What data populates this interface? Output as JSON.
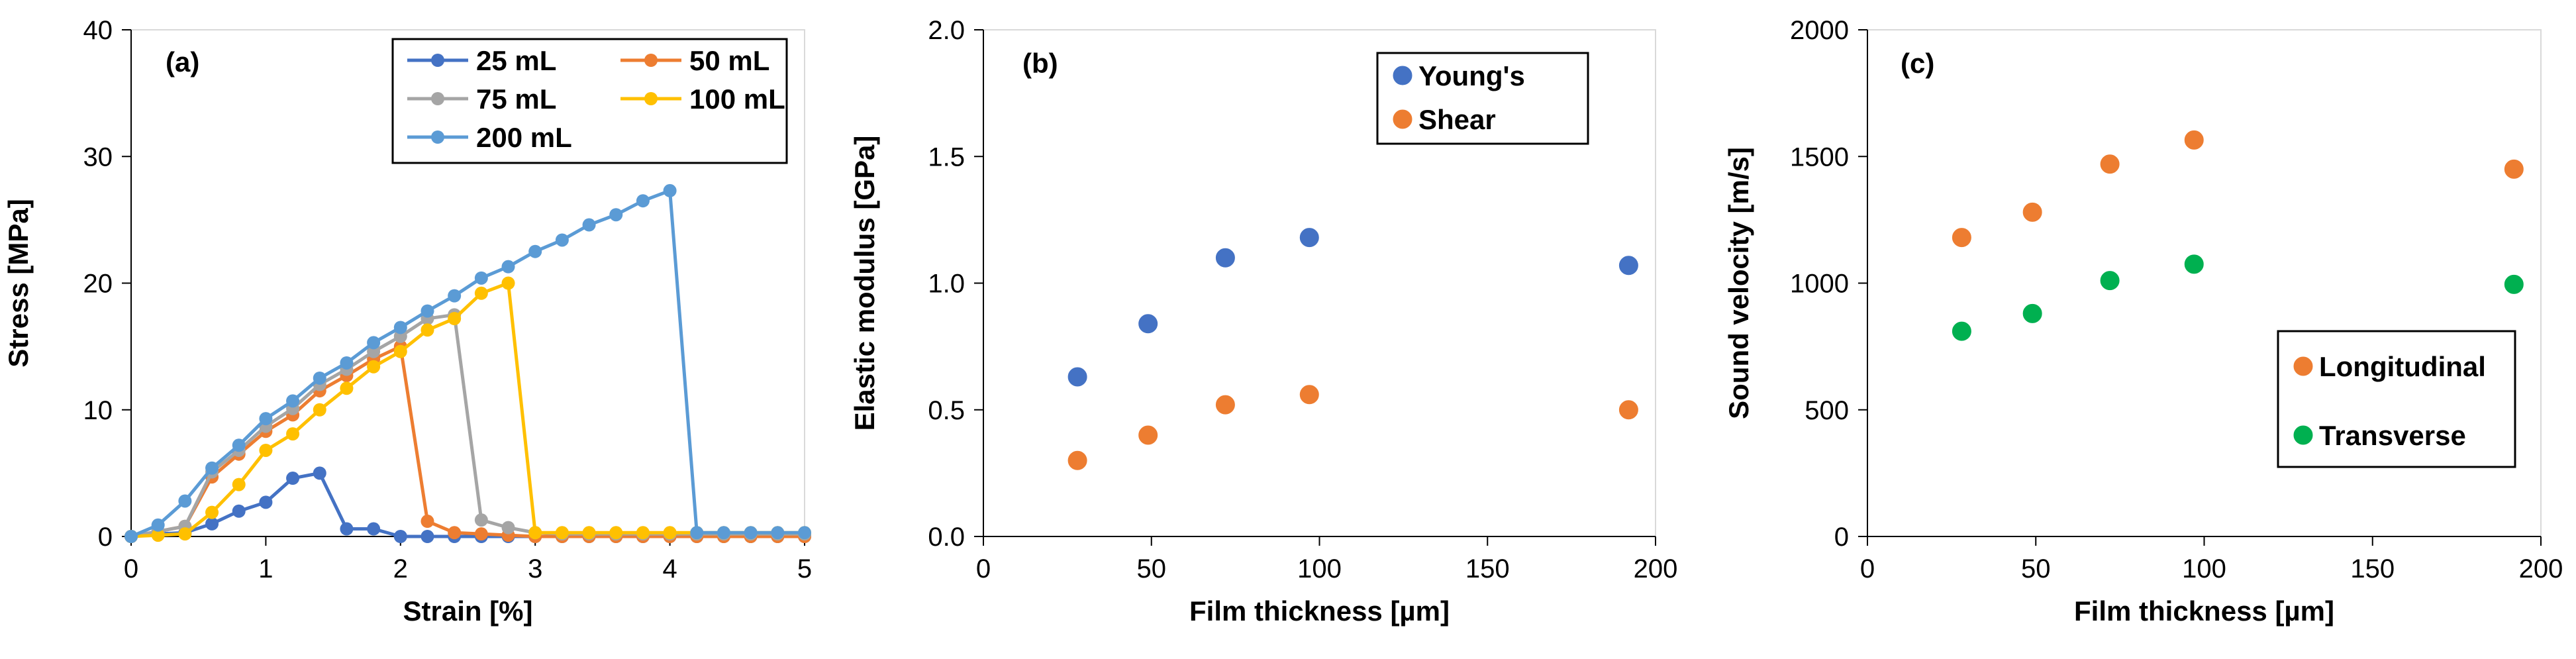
{
  "chart_data": [
    {
      "type": "line",
      "panel": "(a)",
      "xlabel": "Strain [%]",
      "ylabel": "Stress [MPa]",
      "xlim": [
        0,
        5
      ],
      "ylim": [
        0,
        40
      ],
      "xticks": [
        0,
        1,
        2,
        3,
        4,
        5
      ],
      "yticks": [
        0,
        10,
        20,
        30,
        40
      ],
      "legend_position": "top-right",
      "series": [
        {
          "name": "25 mL",
          "color": "#4472C4",
          "points": [
            [
              0,
              0
            ],
            [
              0.2,
              0.2
            ],
            [
              0.4,
              0.3
            ],
            [
              0.6,
              1.0
            ],
            [
              0.8,
              2.0
            ],
            [
              1.0,
              2.7
            ],
            [
              1.2,
              4.6
            ],
            [
              1.4,
              5.0
            ],
            [
              1.6,
              0.6
            ],
            [
              1.8,
              0.6
            ],
            [
              2.0,
              0.0
            ],
            [
              2.2,
              0.0
            ],
            [
              2.4,
              0.0
            ],
            [
              2.6,
              0.0
            ],
            [
              2.8,
              0.0
            ],
            [
              3.0,
              0.0
            ],
            [
              3.2,
              0.0
            ],
            [
              3.4,
              0.0
            ],
            [
              3.6,
              0.0
            ],
            [
              3.8,
              0.0
            ],
            [
              4.0,
              0.0
            ],
            [
              4.2,
              0.0
            ],
            [
              4.4,
              0.0
            ],
            [
              4.6,
              0.0
            ],
            [
              4.8,
              0.0
            ],
            [
              5.0,
              0.0
            ]
          ]
        },
        {
          "name": "50 mL",
          "color": "#ED7D31",
          "points": [
            [
              0,
              0
            ],
            [
              0.2,
              0.4
            ],
            [
              0.4,
              0.8
            ],
            [
              0.6,
              4.7
            ],
            [
              0.8,
              6.5
            ],
            [
              1.0,
              8.3
            ],
            [
              1.2,
              9.6
            ],
            [
              1.4,
              11.5
            ],
            [
              1.6,
              12.7
            ],
            [
              1.8,
              14.0
            ],
            [
              2.0,
              15.0
            ],
            [
              2.2,
              1.2
            ],
            [
              2.4,
              0.3
            ],
            [
              2.6,
              0.2
            ],
            [
              2.8,
              0.1
            ],
            [
              3.0,
              0.0
            ],
            [
              3.2,
              0.0
            ],
            [
              3.4,
              0.0
            ],
            [
              3.6,
              0.0
            ],
            [
              3.8,
              0.0
            ],
            [
              4.0,
              0.0
            ],
            [
              4.2,
              0.0
            ],
            [
              4.4,
              0.0
            ],
            [
              4.6,
              0.0
            ],
            [
              4.8,
              0.0
            ],
            [
              5.0,
              0.0
            ]
          ]
        },
        {
          "name": "75 mL",
          "color": "#A5A5A5",
          "points": [
            [
              0,
              0
            ],
            [
              0.2,
              0.4
            ],
            [
              0.4,
              0.8
            ],
            [
              0.6,
              5.1
            ],
            [
              0.8,
              6.8
            ],
            [
              1.0,
              8.7
            ],
            [
              1.2,
              10.1
            ],
            [
              1.4,
              12.0
            ],
            [
              1.6,
              13.2
            ],
            [
              1.8,
              14.6
            ],
            [
              2.0,
              15.8
            ],
            [
              2.2,
              17.2
            ],
            [
              2.4,
              17.5
            ],
            [
              2.6,
              1.3
            ],
            [
              2.8,
              0.7
            ],
            [
              3.0,
              0.3
            ],
            [
              3.2,
              0.2
            ],
            [
              3.4,
              0.2
            ],
            [
              3.6,
              0.2
            ],
            [
              3.8,
              0.2
            ],
            [
              4.0,
              0.2
            ],
            [
              4.2,
              0.2
            ],
            [
              4.4,
              0.2
            ],
            [
              4.6,
              0.2
            ],
            [
              4.8,
              0.2
            ],
            [
              5.0,
              0.2
            ]
          ]
        },
        {
          "name": "100 mL",
          "color": "#FFC000",
          "points": [
            [
              0,
              0
            ],
            [
              0.2,
              0.1
            ],
            [
              0.4,
              0.2
            ],
            [
              0.6,
              1.9
            ],
            [
              0.8,
              4.1
            ],
            [
              1.0,
              6.8
            ],
            [
              1.2,
              8.1
            ],
            [
              1.4,
              10.0
            ],
            [
              1.6,
              11.7
            ],
            [
              1.8,
              13.4
            ],
            [
              2.0,
              14.6
            ],
            [
              2.2,
              16.3
            ],
            [
              2.4,
              17.2
            ],
            [
              2.6,
              19.2
            ],
            [
              2.8,
              20.0
            ],
            [
              3.0,
              0.3
            ],
            [
              3.2,
              0.3
            ],
            [
              3.4,
              0.3
            ],
            [
              3.6,
              0.3
            ],
            [
              3.8,
              0.3
            ],
            [
              4.0,
              0.3
            ],
            [
              4.2,
              0.3
            ],
            [
              4.4,
              0.3
            ],
            [
              4.6,
              0.3
            ],
            [
              4.8,
              0.3
            ],
            [
              5.0,
              0.3
            ]
          ]
        },
        {
          "name": "200 mL",
          "color": "#5B9BD5",
          "points": [
            [
              0,
              0
            ],
            [
              0.2,
              0.9
            ],
            [
              0.4,
              2.8
            ],
            [
              0.6,
              5.4
            ],
            [
              0.8,
              7.2
            ],
            [
              1.0,
              9.3
            ],
            [
              1.2,
              10.7
            ],
            [
              1.4,
              12.5
            ],
            [
              1.6,
              13.7
            ],
            [
              1.8,
              15.3
            ],
            [
              2.0,
              16.5
            ],
            [
              2.2,
              17.8
            ],
            [
              2.4,
              19.0
            ],
            [
              2.6,
              20.4
            ],
            [
              2.8,
              21.3
            ],
            [
              3.0,
              22.5
            ],
            [
              3.2,
              23.4
            ],
            [
              3.4,
              24.6
            ],
            [
              3.6,
              25.4
            ],
            [
              3.8,
              26.5
            ],
            [
              4.0,
              27.3
            ],
            [
              4.2,
              0.3
            ],
            [
              4.4,
              0.3
            ],
            [
              4.6,
              0.3
            ],
            [
              4.8,
              0.3
            ],
            [
              5.0,
              0.3
            ]
          ]
        }
      ]
    },
    {
      "type": "scatter",
      "panel": "(b)",
      "xlabel": "Film thickness [µm]",
      "ylabel": "Elastic modulus [GPa]",
      "xlim": [
        0,
        200
      ],
      "ylim": [
        0,
        2.0
      ],
      "xticks": [
        0,
        50,
        100,
        150,
        200
      ],
      "yticks": [
        "0.0",
        "0.5",
        "1.0",
        "1.5",
        "2.0"
      ],
      "legend_position": "top-right",
      "series": [
        {
          "name": "Young's",
          "color": "#4472C4",
          "x": [
            28,
            49,
            72,
            97,
            192
          ],
          "y": [
            0.63,
            0.84,
            1.1,
            1.18,
            1.07
          ]
        },
        {
          "name": "Shear",
          "color": "#ED7D31",
          "x": [
            28,
            49,
            72,
            97,
            192
          ],
          "y": [
            0.3,
            0.4,
            0.52,
            0.56,
            0.5
          ]
        }
      ]
    },
    {
      "type": "scatter",
      "panel": "(c)",
      "xlabel": "Film thickness [µm]",
      "ylabel": "Sound velocity [m/s]",
      "xlim": [
        0,
        200
      ],
      "ylim": [
        0,
        2000
      ],
      "xticks": [
        0,
        50,
        100,
        150,
        200
      ],
      "yticks": [
        0,
        500,
        1000,
        1500,
        2000
      ],
      "legend_position": "bottom-right",
      "series": [
        {
          "name": "Longitudinal",
          "color": "#ED7D31",
          "x": [
            28,
            49,
            72,
            97,
            192
          ],
          "y": [
            1180,
            1280,
            1470,
            1565,
            1450
          ]
        },
        {
          "name": "Transverse",
          "color": "#00B050",
          "x": [
            28,
            49,
            72,
            97,
            192
          ],
          "y": [
            810,
            880,
            1010,
            1075,
            995
          ]
        }
      ]
    }
  ]
}
